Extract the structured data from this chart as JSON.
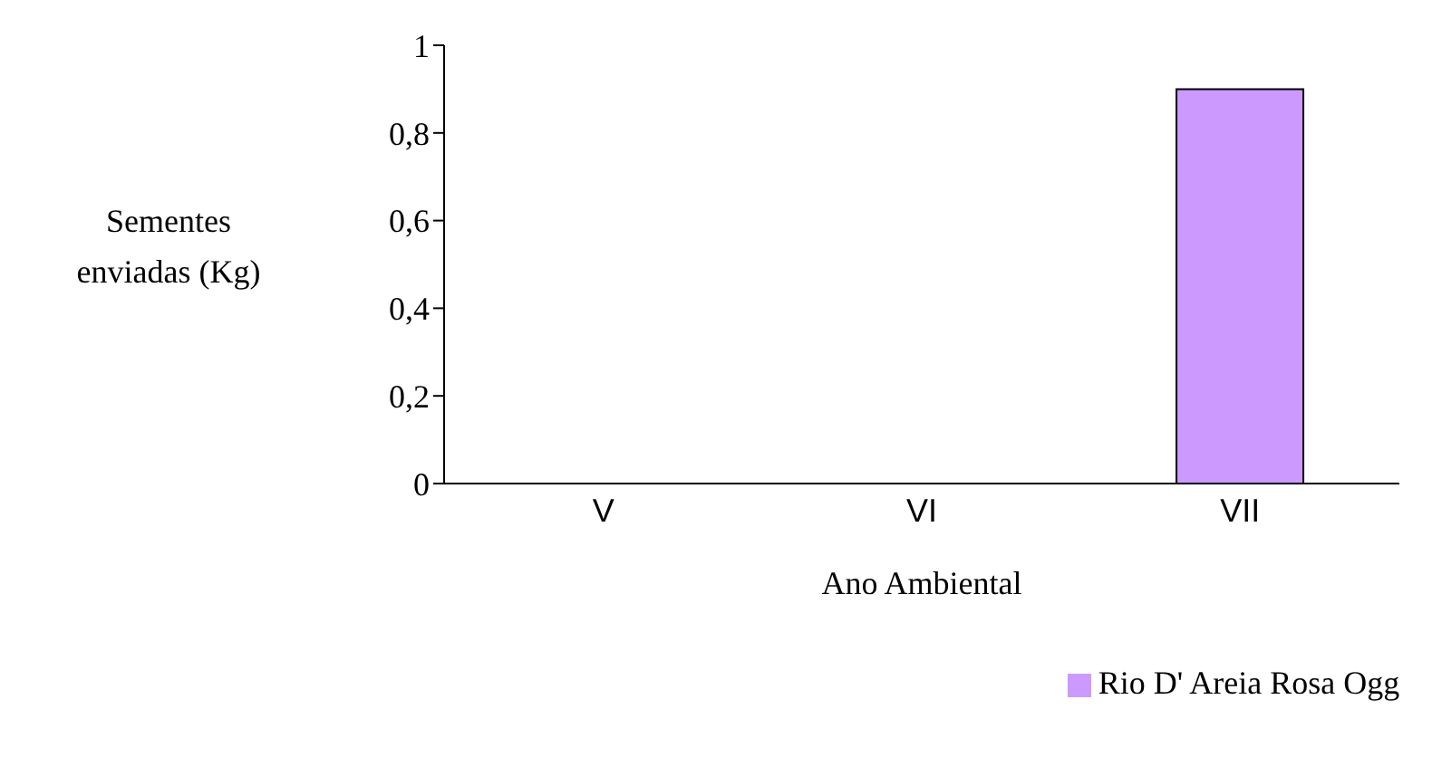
{
  "chart_data": {
    "type": "bar",
    "xlabel": "Ano Ambiental",
    "ylabel": "Sementes enviadas (Kg)",
    "categories": [
      "V",
      "VI",
      "VII"
    ],
    "series": [
      {
        "name": "Rio D' Areia Rosa Ogg",
        "color": "#cc99ff",
        "values": [
          0,
          0,
          0.9
        ]
      }
    ],
    "ylim": [
      0,
      1
    ],
    "yticks": [
      0,
      {
        "value": 0.2,
        "label": "0,2"
      },
      {
        "value": 0.4,
        "label": "0,4"
      },
      {
        "value": 0.6,
        "label": "0,6"
      },
      {
        "value": 0.8,
        "label": "0,8"
      },
      1
    ],
    "grid": false,
    "legend": "bottom"
  }
}
